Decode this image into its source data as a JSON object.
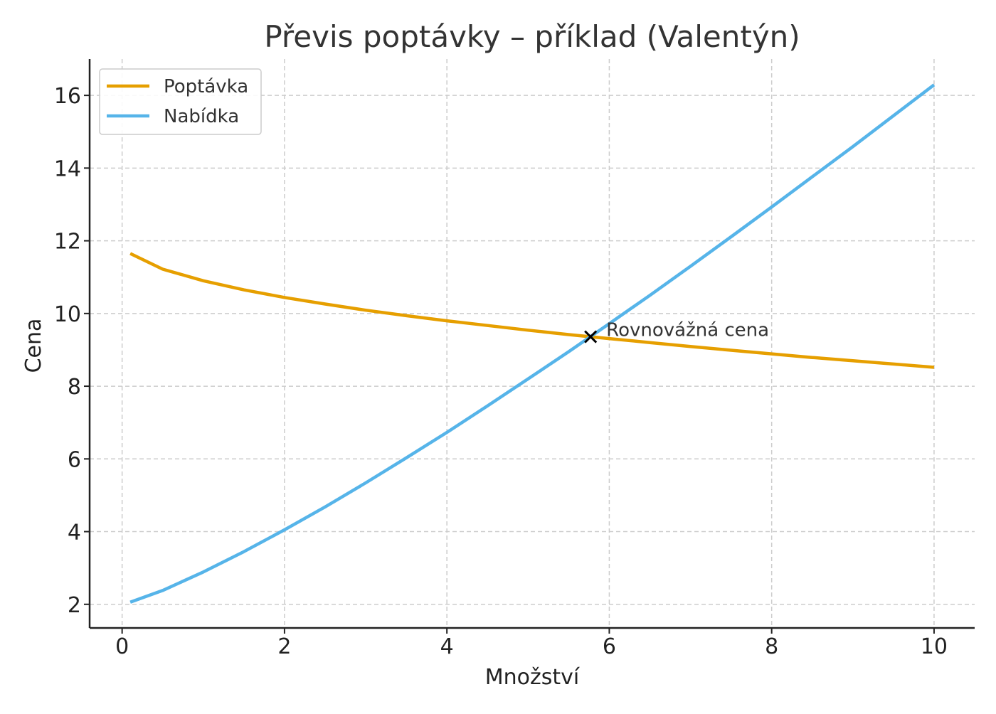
{
  "chart_data": {
    "type": "line",
    "title": "Převis poptávky – příklad (Valentýn)",
    "xlabel": "Množství",
    "ylabel": "Cena",
    "xlim": [
      -0.4,
      10.5
    ],
    "ylim": [
      1.35,
      17
    ],
    "xticks": [
      0,
      2,
      4,
      6,
      8,
      10
    ],
    "yticks": [
      2,
      4,
      6,
      8,
      10,
      12,
      14,
      16
    ],
    "grid": true,
    "legend_position": "top-left",
    "x": [
      0.1,
      0.5,
      1,
      1.5,
      2,
      2.5,
      3,
      3.5,
      4,
      4.5,
      5,
      5.5,
      6,
      6.5,
      7,
      7.5,
      8,
      8.5,
      9,
      9.5,
      10
    ],
    "series": [
      {
        "name": "Poptávka",
        "color": "#E69F00",
        "values": [
          11.65,
          11.22,
          10.9,
          10.65,
          10.44,
          10.26,
          10.09,
          9.94,
          9.8,
          9.67,
          9.54,
          9.42,
          9.31,
          9.2,
          9.09,
          8.99,
          8.89,
          8.79,
          8.7,
          8.61,
          8.52
        ]
      },
      {
        "name": "Nabídka",
        "color": "#56B4E9",
        "values": [
          2.06,
          2.38,
          2.89,
          3.45,
          4.05,
          4.68,
          5.34,
          6.03,
          6.73,
          7.46,
          8.2,
          8.95,
          9.72,
          10.5,
          11.3,
          12.11,
          12.93,
          13.76,
          14.59,
          15.44,
          16.29
        ]
      }
    ],
    "annotations": [
      {
        "text": "Rovnovážná cena",
        "marker": "x",
        "x": 5.77,
        "y": 9.36
      }
    ]
  }
}
